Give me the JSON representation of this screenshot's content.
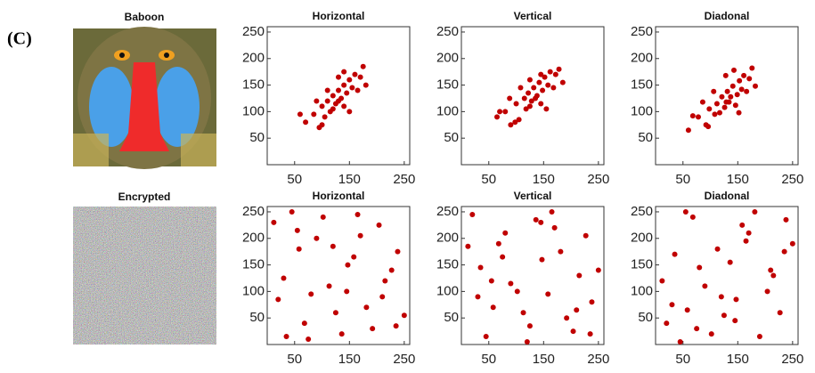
{
  "panel_label": "(C)",
  "images": [
    {
      "title": "Baboon"
    },
    {
      "title": "Encrypted"
    }
  ],
  "chart_data": [
    {
      "type": "scatter",
      "title": "Horizontal",
      "color": "#c00000",
      "xlim": [
        0,
        260
      ],
      "ylim": [
        0,
        260
      ],
      "xticks": [
        50,
        150,
        250
      ],
      "yticks": [
        50,
        100,
        150,
        200,
        250
      ],
      "x": [
        70,
        85,
        95,
        100,
        105,
        110,
        115,
        120,
        120,
        125,
        130,
        130,
        135,
        140,
        140,
        145,
        150,
        155,
        160,
        165,
        170,
        175,
        90,
        110,
        150,
        60,
        180,
        130,
        100,
        140
      ],
      "values": [
        80,
        95,
        70,
        110,
        90,
        120,
        100,
        130,
        105,
        115,
        140,
        120,
        125,
        150,
        110,
        135,
        160,
        145,
        170,
        140,
        165,
        185,
        120,
        140,
        100,
        95,
        150,
        165,
        75,
        175
      ]
    },
    {
      "type": "scatter",
      "title": "Vertical",
      "color": "#c00000",
      "xlim": [
        0,
        260
      ],
      "ylim": [
        0,
        260
      ],
      "xticks": [
        50,
        150,
        250
      ],
      "yticks": [
        50,
        100,
        150,
        200,
        250
      ],
      "x": [
        65,
        80,
        90,
        100,
        105,
        115,
        118,
        122,
        125,
        128,
        132,
        135,
        138,
        142,
        145,
        148,
        152,
        158,
        162,
        168,
        172,
        178,
        88,
        108,
        155,
        70,
        185,
        125,
        98,
        145
      ],
      "values": [
        90,
        100,
        75,
        115,
        85,
        125,
        105,
        135,
        110,
        120,
        145,
        125,
        130,
        155,
        115,
        140,
        165,
        150,
        175,
        145,
        170,
        180,
        125,
        145,
        105,
        100,
        155,
        160,
        80,
        170
      ]
    },
    {
      "type": "scatter",
      "title": "Diadonal",
      "color": "#c00000",
      "xlim": [
        0,
        260
      ],
      "ylim": [
        0,
        260
      ],
      "xticks": [
        50,
        150,
        250
      ],
      "yticks": [
        50,
        100,
        150,
        200,
        250
      ],
      "x": [
        60,
        78,
        92,
        98,
        108,
        112,
        117,
        121,
        126,
        129,
        131,
        134,
        137,
        141,
        146,
        149,
        153,
        157,
        161,
        166,
        171,
        176,
        86,
        106,
        152,
        68,
        182,
        128,
        96,
        143
      ],
      "values": [
        65,
        90,
        75,
        105,
        95,
        115,
        98,
        128,
        108,
        118,
        138,
        118,
        128,
        148,
        112,
        132,
        158,
        142,
        168,
        138,
        162,
        182,
        118,
        138,
        98,
        92,
        148,
        168,
        72,
        178
      ]
    },
    {
      "type": "scatter",
      "title": "Horizontal",
      "color": "#c00000",
      "xlim": [
        0,
        260
      ],
      "ylim": [
        0,
        260
      ],
      "xticks": [
        50,
        150,
        250
      ],
      "yticks": [
        50,
        100,
        150,
        200,
        250
      ],
      "x": [
        12,
        35,
        58,
        80,
        102,
        125,
        147,
        170,
        192,
        215,
        238,
        20,
        45,
        68,
        90,
        113,
        136,
        158,
        181,
        204,
        227,
        250,
        30,
        75,
        120,
        165,
        210,
        55,
        145,
        235
      ],
      "values": [
        230,
        15,
        180,
        95,
        240,
        60,
        150,
        205,
        30,
        120,
        175,
        85,
        250,
        40,
        200,
        110,
        20,
        165,
        70,
        225,
        140,
        55,
        125,
        10,
        185,
        245,
        90,
        215,
        100,
        35
      ]
    },
    {
      "type": "scatter",
      "title": "Vertical",
      "color": "#c00000",
      "xlim": [
        0,
        260
      ],
      "ylim": [
        0,
        260
      ],
      "xticks": [
        50,
        150,
        250
      ],
      "yticks": [
        50,
        100,
        150,
        200,
        250
      ],
      "x": [
        250,
        227,
        204,
        181,
        158,
        136,
        113,
        90,
        68,
        45,
        20,
        238,
        215,
        192,
        170,
        147,
        125,
        102,
        80,
        58,
        35,
        12,
        235,
        145,
        55,
        210,
        165,
        120,
        75,
        30
      ],
      "values": [
        140,
        205,
        25,
        175,
        95,
        235,
        60,
        115,
        190,
        15,
        245,
        80,
        130,
        50,
        220,
        160,
        35,
        100,
        210,
        70,
        145,
        185,
        20,
        230,
        120,
        65,
        250,
        5,
        165,
        90
      ]
    },
    {
      "type": "scatter",
      "title": "Diadonal",
      "color": "#c00000",
      "xlim": [
        0,
        260
      ],
      "ylim": [
        0,
        260
      ],
      "xticks": [
        50,
        150,
        250
      ],
      "yticks": [
        50,
        100,
        150,
        200,
        250
      ],
      "x": [
        125,
        250,
        12,
        190,
        68,
        147,
        35,
        215,
        102,
        170,
        58,
        238,
        80,
        20,
        204,
        113,
        181,
        45,
        227,
        136,
        90,
        158,
        30,
        165,
        75,
        210,
        120,
        55,
        235,
        145
      ],
      "values": [
        55,
        190,
        120,
        15,
        240,
        85,
        170,
        130,
        20,
        210,
        65,
        235,
        145,
        40,
        100,
        180,
        250,
        5,
        60,
        155,
        110,
        225,
        75,
        195,
        30,
        140,
        90,
        250,
        175,
        45
      ]
    }
  ]
}
